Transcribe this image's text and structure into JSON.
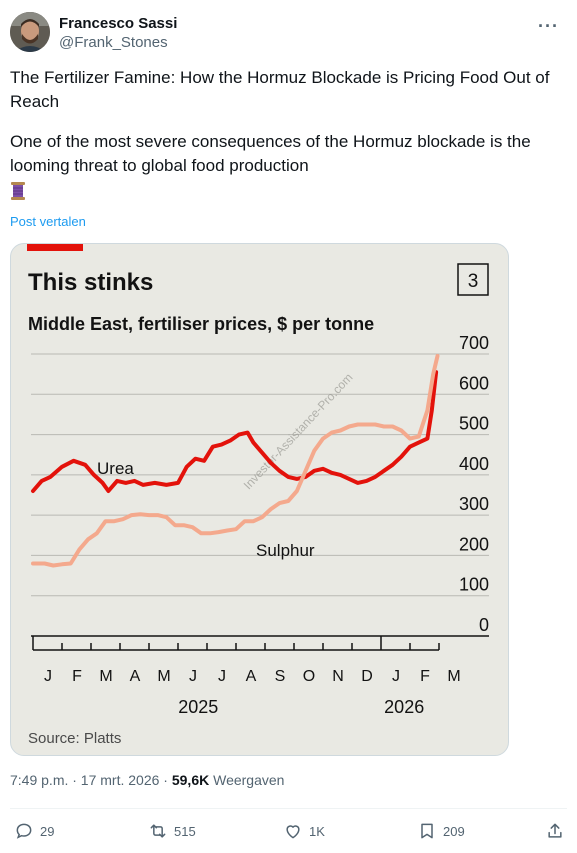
{
  "author": {
    "display_name": "Francesco Sassi",
    "handle": "@Frank_Stones"
  },
  "more_icon": "ellipsis-icon",
  "tweet": {
    "paragraph1": "The Fertilizer Famine: How the Hormuz Blockade is Pricing Food Out of Reach",
    "paragraph2": "One of the most severe consequences of the Hormuz blockade is the looming threat to global food production",
    "emoji": "spool-of-thread-icon",
    "translate_label": "Post vertalen"
  },
  "chart_data": {
    "type": "line",
    "title": "This stinks",
    "subtitle": "Middle East, fertiliser prices, $ per tonne",
    "badge": "3",
    "source": "Source: Platts",
    "watermark": "Investor-Assistance-Pro.com",
    "ylim": [
      0,
      700
    ],
    "y_ticks": [
      "700",
      "600",
      "500",
      "400",
      "300",
      "200",
      "100",
      "0"
    ],
    "y_tick_values": [
      700,
      600,
      500,
      400,
      300,
      200,
      100,
      0
    ],
    "month_labels": [
      "J",
      "F",
      "M",
      "A",
      "M",
      "J",
      "J",
      "A",
      "S",
      "O",
      "N",
      "D",
      "J",
      "F",
      "M"
    ],
    "year_labels": [
      "2025",
      "2026"
    ],
    "series": [
      {
        "name": "Urea",
        "color": "#e3120b",
        "points": [
          [
            0,
            360
          ],
          [
            0.3,
            385
          ],
          [
            0.6,
            395
          ],
          [
            1,
            420
          ],
          [
            1.4,
            435
          ],
          [
            1.8,
            425
          ],
          [
            2.1,
            400
          ],
          [
            2.4,
            380
          ],
          [
            2.6,
            360
          ],
          [
            2.9,
            385
          ],
          [
            3.2,
            380
          ],
          [
            3.5,
            385
          ],
          [
            3.8,
            375
          ],
          [
            4.2,
            380
          ],
          [
            4.6,
            375
          ],
          [
            5,
            380
          ],
          [
            5.3,
            420
          ],
          [
            5.6,
            440
          ],
          [
            5.9,
            435
          ],
          [
            6.2,
            470
          ],
          [
            6.5,
            475
          ],
          [
            6.8,
            485
          ],
          [
            7.1,
            500
          ],
          [
            7.4,
            505
          ],
          [
            7.6,
            480
          ],
          [
            7.9,
            455
          ],
          [
            8.2,
            430
          ],
          [
            8.5,
            410
          ],
          [
            8.8,
            395
          ],
          [
            9.1,
            390
          ],
          [
            9.4,
            395
          ],
          [
            9.7,
            410
          ],
          [
            10,
            415
          ],
          [
            10.3,
            405
          ],
          [
            10.6,
            400
          ],
          [
            10.9,
            390
          ],
          [
            11.2,
            380
          ],
          [
            11.5,
            385
          ],
          [
            11.8,
            395
          ],
          [
            12.1,
            410
          ],
          [
            12.4,
            425
          ],
          [
            12.7,
            445
          ],
          [
            13,
            470
          ],
          [
            13.3,
            480
          ],
          [
            13.6,
            490
          ],
          [
            13.75,
            560
          ],
          [
            13.9,
            655
          ]
        ]
      },
      {
        "name": "Sulphur",
        "color": "#f4a98d",
        "points": [
          [
            0,
            180
          ],
          [
            0.4,
            180
          ],
          [
            0.7,
            175
          ],
          [
            1,
            178
          ],
          [
            1.3,
            180
          ],
          [
            1.6,
            215
          ],
          [
            1.9,
            240
          ],
          [
            2.2,
            255
          ],
          [
            2.5,
            285
          ],
          [
            2.8,
            285
          ],
          [
            3.1,
            290
          ],
          [
            3.4,
            300
          ],
          [
            3.7,
            302
          ],
          [
            4,
            300
          ],
          [
            4.3,
            300
          ],
          [
            4.6,
            295
          ],
          [
            4.9,
            275
          ],
          [
            5.2,
            275
          ],
          [
            5.5,
            270
          ],
          [
            5.8,
            255
          ],
          [
            6.1,
            255
          ],
          [
            6.4,
            258
          ],
          [
            6.7,
            262
          ],
          [
            7,
            265
          ],
          [
            7.3,
            285
          ],
          [
            7.6,
            285
          ],
          [
            7.9,
            295
          ],
          [
            8.2,
            315
          ],
          [
            8.5,
            330
          ],
          [
            8.8,
            335
          ],
          [
            9.1,
            360
          ],
          [
            9.4,
            410
          ],
          [
            9.7,
            460
          ],
          [
            10,
            490
          ],
          [
            10.3,
            505
          ],
          [
            10.6,
            510
          ],
          [
            10.9,
            520
          ],
          [
            11.2,
            525
          ],
          [
            11.5,
            525
          ],
          [
            11.8,
            525
          ],
          [
            12.1,
            520
          ],
          [
            12.4,
            520
          ],
          [
            12.7,
            510
          ],
          [
            13,
            490
          ],
          [
            13.3,
            495
          ],
          [
            13.6,
            560
          ],
          [
            13.8,
            650
          ],
          [
            13.95,
            695
          ]
        ]
      }
    ],
    "series_labels": {
      "urea": "Urea",
      "sulphur": "Sulphur"
    },
    "grid": true
  },
  "meta": {
    "timestamp": "7:49 p.m. · 17 mrt. 2026 · ",
    "views_count": "59,6K",
    "views_label": " Weergaven"
  },
  "actions": {
    "replies": "29",
    "reposts": "515",
    "likes": "1K",
    "bookmarks": "209"
  }
}
